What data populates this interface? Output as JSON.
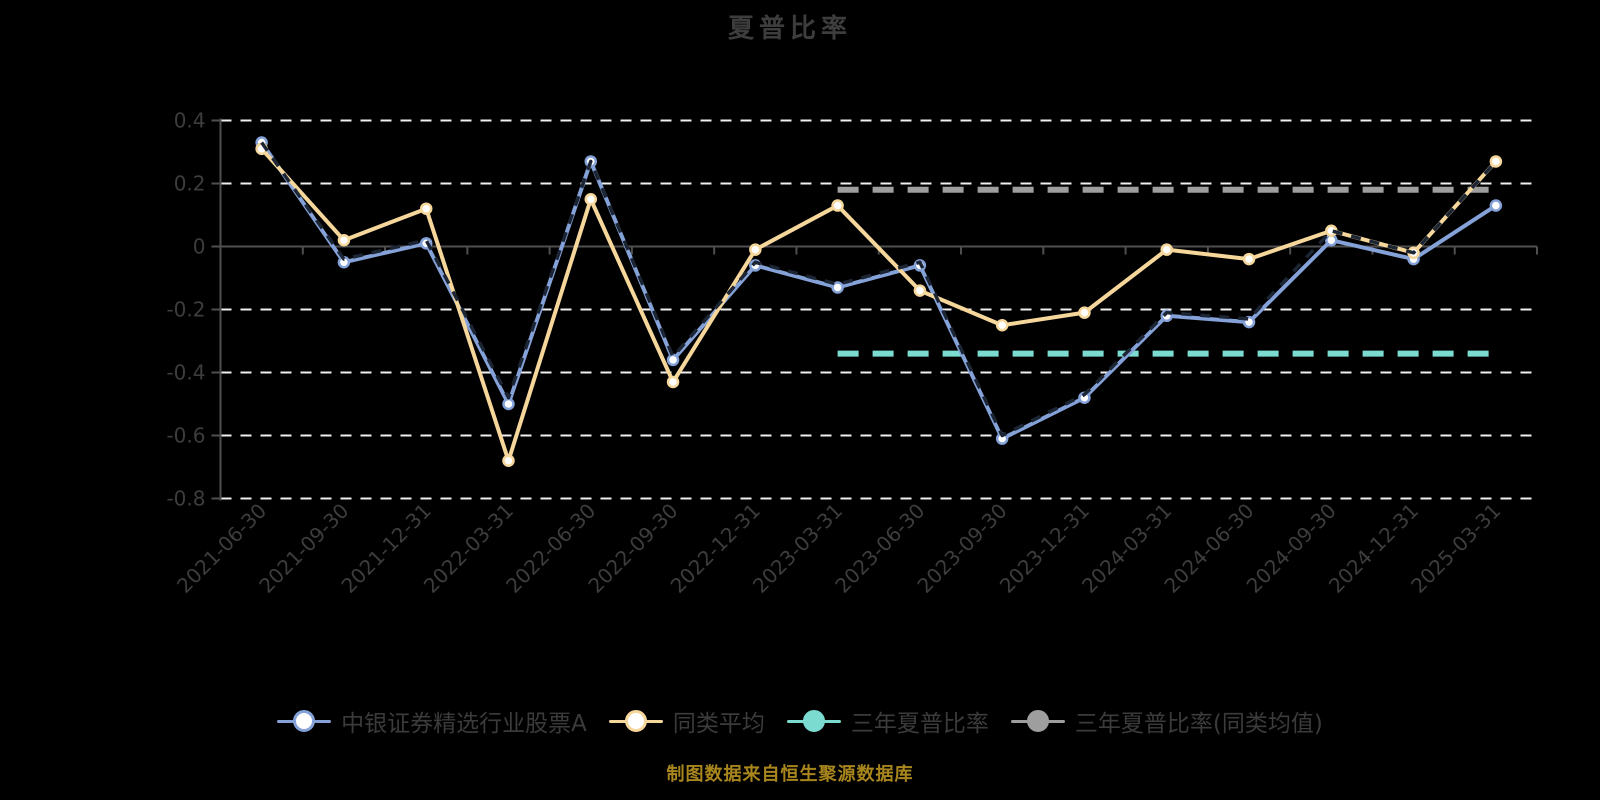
{
  "title": "夏普比率",
  "footer": "制图数据来自恒生聚源数据库",
  "legend": [
    {
      "label": "中银证券精选行业股票A",
      "color": "#84a1d8",
      "marker": "hollow"
    },
    {
      "label": "同类平均",
      "color": "#f6d79b",
      "marker": "hollow"
    },
    {
      "label": "三年夏普比率",
      "color": "#7bdbd1",
      "marker": "solid"
    },
    {
      "label": "三年夏普比率(同类均值)",
      "color": "#9e9e9e",
      "marker": "solid"
    }
  ],
  "chart_data": {
    "type": "line",
    "title": "夏普比率",
    "categories": [
      "2021-06-30",
      "2021-09-30",
      "2021-12-31",
      "2022-03-31",
      "2022-06-30",
      "2022-09-30",
      "2022-12-31",
      "2023-03-31",
      "2023-06-30",
      "2023-09-30",
      "2023-12-31",
      "2024-03-31",
      "2024-06-30",
      "2024-09-30",
      "2024-12-31",
      "2025-03-31"
    ],
    "series": [
      {
        "name": "中银证券精选行业股票A",
        "type": "line",
        "color": "#84a1d8",
        "marker": "hollow-circle",
        "values": [
          0.33,
          -0.05,
          0.01,
          -0.5,
          0.27,
          -0.36,
          -0.06,
          -0.13,
          -0.06,
          -0.61,
          -0.48,
          -0.22,
          -0.24,
          0.02,
          -0.04,
          0.13
        ]
      },
      {
        "name": "同类平均",
        "type": "line",
        "color": "#f6d79b",
        "marker": "hollow-circle",
        "values": [
          0.31,
          0.02,
          0.12,
          -0.68,
          0.15,
          -0.43,
          -0.01,
          0.13,
          -0.14,
          -0.25,
          -0.21,
          -0.01,
          -0.04,
          0.05,
          -0.02,
          0.27
        ]
      },
      {
        "name": "三年夏普比率",
        "type": "horizontal-dashed-line",
        "color": "#7bdbd1",
        "value": -0.34,
        "span_categories": [
          "2023-03-31",
          "2025-03-31"
        ]
      },
      {
        "name": "三年夏普比率(同类均值)",
        "type": "horizontal-dashed-line",
        "color": "#9e9e9e",
        "value": 0.18,
        "span_categories": [
          "2023-03-31",
          "2025-03-31"
        ]
      },
      {
        "name": "unlabeled-dark-dashed-overlay",
        "type": "line-dashed",
        "color": "#1c2534",
        "values": [
          0.33,
          -0.04,
          0.02,
          -0.48,
          0.27,
          -0.35,
          -0.05,
          -0.12,
          -0.05,
          -0.6,
          -0.47,
          -0.21,
          -0.23,
          0.05,
          -0.02,
          0.27
        ]
      }
    ],
    "ylim": [
      -0.8,
      0.4
    ],
    "yticks": [
      0.4,
      0.2,
      0,
      -0.2,
      -0.4,
      -0.6,
      -0.8
    ],
    "ytick_labels": [
      "0.4",
      "0.2",
      "0",
      "-0.2",
      "-0.4",
      "-0.6",
      "-0.8"
    ],
    "xlabel": "",
    "ylabel": "",
    "grid": "horizontal white dashed lines, solid axis line at 0",
    "x_label_rotation_deg": -45,
    "legend_position": "bottom"
  },
  "colors": {
    "background": "#000000",
    "title_text": "#3d3d3d",
    "axis_text": "#3d3d3d",
    "axis_line": "#4f4f4f",
    "gridline": "#efefef",
    "series_fund": "#84a1d8",
    "series_peer_avg": "#f6d79b",
    "series_3yr_sharpe": "#7bdbd1",
    "series_3yr_sharpe_peer": "#9e9e9e",
    "footer_text": "#a8861d",
    "marker_fill": "#ffffff"
  }
}
